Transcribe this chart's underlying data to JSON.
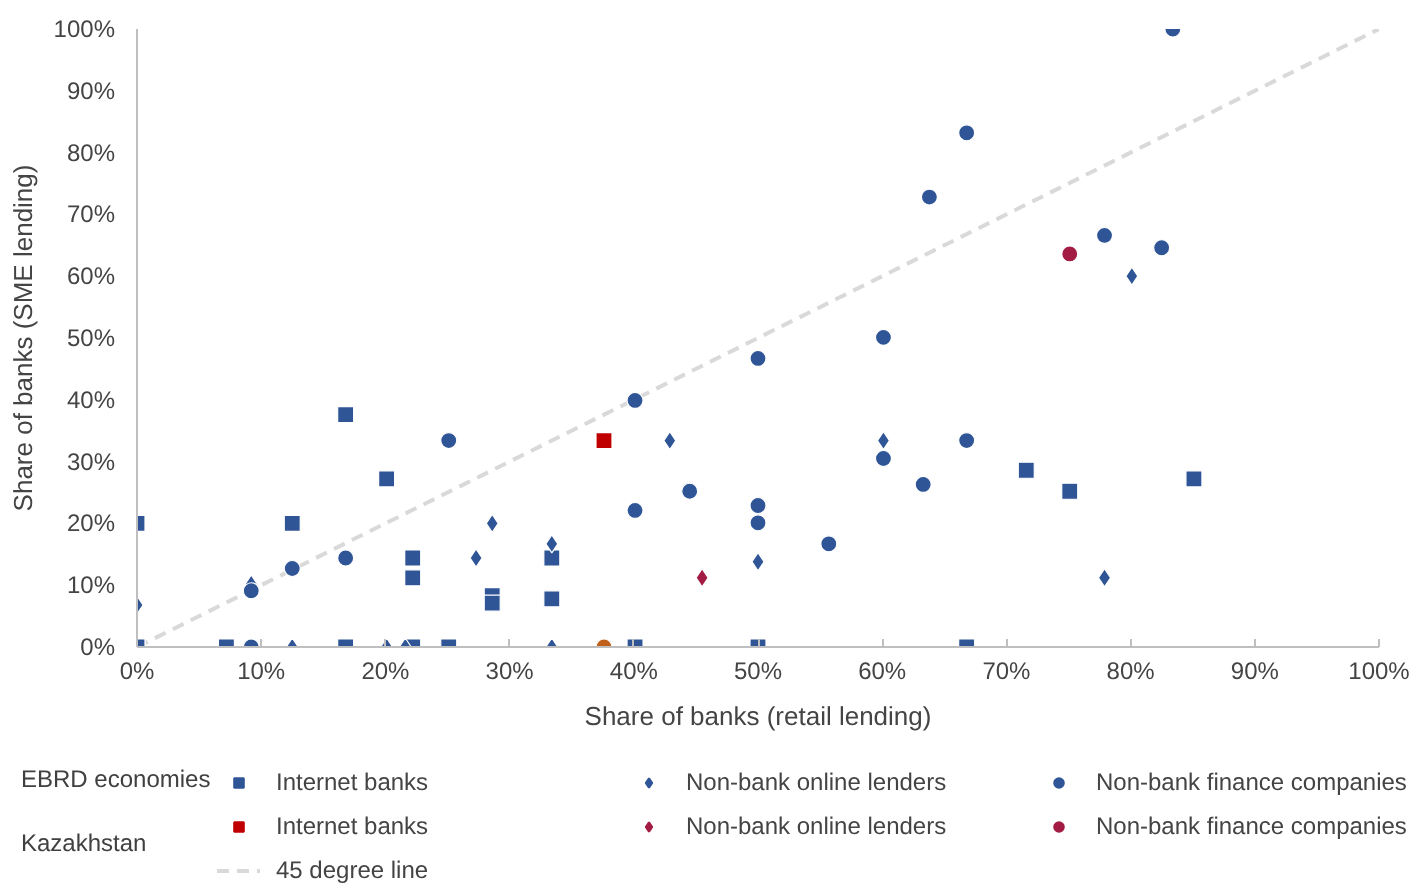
{
  "chart_data": {
    "type": "scatter",
    "xlabel": "Share of banks (retail lending)",
    "ylabel": "Share of banks (SME lending)",
    "xlim": [
      0,
      100
    ],
    "ylim": [
      0,
      100
    ],
    "xticks": [
      {
        "value": 0,
        "label": "0%"
      },
      {
        "value": 10,
        "label": "10%"
      },
      {
        "value": 20,
        "label": "20%"
      },
      {
        "value": 30,
        "label": "30%"
      },
      {
        "value": 40,
        "label": "40%"
      },
      {
        "value": 50,
        "label": "50%"
      },
      {
        "value": 60,
        "label": "60%"
      },
      {
        "value": 70,
        "label": "70%"
      },
      {
        "value": 80,
        "label": "80%"
      },
      {
        "value": 90,
        "label": "90%"
      },
      {
        "value": 100,
        "label": "100%"
      }
    ],
    "yticks": [
      {
        "value": 0,
        "label": "0%"
      },
      {
        "value": 10,
        "label": "10%"
      },
      {
        "value": 20,
        "label": "20%"
      },
      {
        "value": 30,
        "label": "30%"
      },
      {
        "value": 40,
        "label": "40%"
      },
      {
        "value": 50,
        "label": "50%"
      },
      {
        "value": 60,
        "label": "60%"
      },
      {
        "value": 70,
        "label": "70%"
      },
      {
        "value": 80,
        "label": "80%"
      },
      {
        "value": 90,
        "label": "90%"
      },
      {
        "value": 100,
        "label": "100%"
      }
    ],
    "grid": false,
    "legend": "bottom",
    "annotations": [
      "EBRD economies",
      "Kazakhstan"
    ],
    "series": [
      {
        "name": "45 degree line",
        "type": "line",
        "line_style": "dashed",
        "color": "#d9d9d9",
        "x": [
          0,
          100
        ],
        "values": [
          0,
          100
        ]
      },
      {
        "name": "Internet banks",
        "marker": "square",
        "color": "#2f5597",
        "x": [
          0,
          0,
          7.2,
          12.5,
          16.8,
          16.8,
          20.1,
          22.2,
          22.2,
          22.2,
          25.1,
          28.6,
          28.6,
          33.4,
          33.4,
          40.1,
          50,
          66.8,
          71.6,
          75.1,
          85.1
        ],
        "values": [
          20,
          0,
          0,
          20,
          37.6,
          0,
          27.2,
          14.4,
          11.2,
          0,
          0,
          8.3,
          7.1,
          14.4,
          7.8,
          0,
          0,
          0,
          28.6,
          25.2,
          27.2
        ]
      },
      {
        "name": "Non-bank online lenders",
        "marker": "diamond",
        "color": "#2f5597",
        "x": [
          0,
          9.2,
          12.5,
          20.1,
          21.6,
          27.3,
          28.6,
          33.4,
          33.4,
          42.9,
          50,
          60.1,
          77.9,
          80.1
        ],
        "values": [
          6.8,
          10.2,
          0,
          0,
          0,
          14.4,
          20,
          16.7,
          0,
          33.4,
          13.8,
          33.4,
          11.2,
          60
        ]
      },
      {
        "name": "Non-bank finance companies",
        "marker": "circle",
        "color": "#2f5597",
        "x": [
          9.2,
          9.2,
          12.5,
          16.8,
          25.1,
          40.1,
          40.1,
          44.5,
          50,
          50,
          50,
          55.7,
          60.1,
          60.1,
          63.3,
          63.8,
          66.8,
          66.8,
          77.9,
          82.5,
          83.4
        ],
        "values": [
          9.1,
          0,
          12.7,
          14.4,
          33.4,
          39.9,
          22.1,
          25.2,
          46.7,
          22.9,
          20.1,
          16.7,
          50.1,
          30.5,
          26.3,
          72.8,
          33.4,
          83.2,
          66.6,
          64.6,
          100
        ]
      },
      {
        "name": "Internet banks",
        "marker": "square",
        "color": "#c00000",
        "x": [
          37.6
        ],
        "values": [
          33.4
        ]
      },
      {
        "name": "Non-bank online lenders",
        "marker": "diamond",
        "color": "#a31c44",
        "x": [
          45.5
        ],
        "values": [
          11.2
        ]
      },
      {
        "name": "Non-bank finance companies",
        "marker": "circle",
        "color": "#a31c44",
        "colors": [
          "#a31c44",
          "#c0601b"
        ],
        "x": [
          75.1,
          37.6
        ],
        "values": [
          63.6,
          0
        ]
      }
    ]
  }
}
